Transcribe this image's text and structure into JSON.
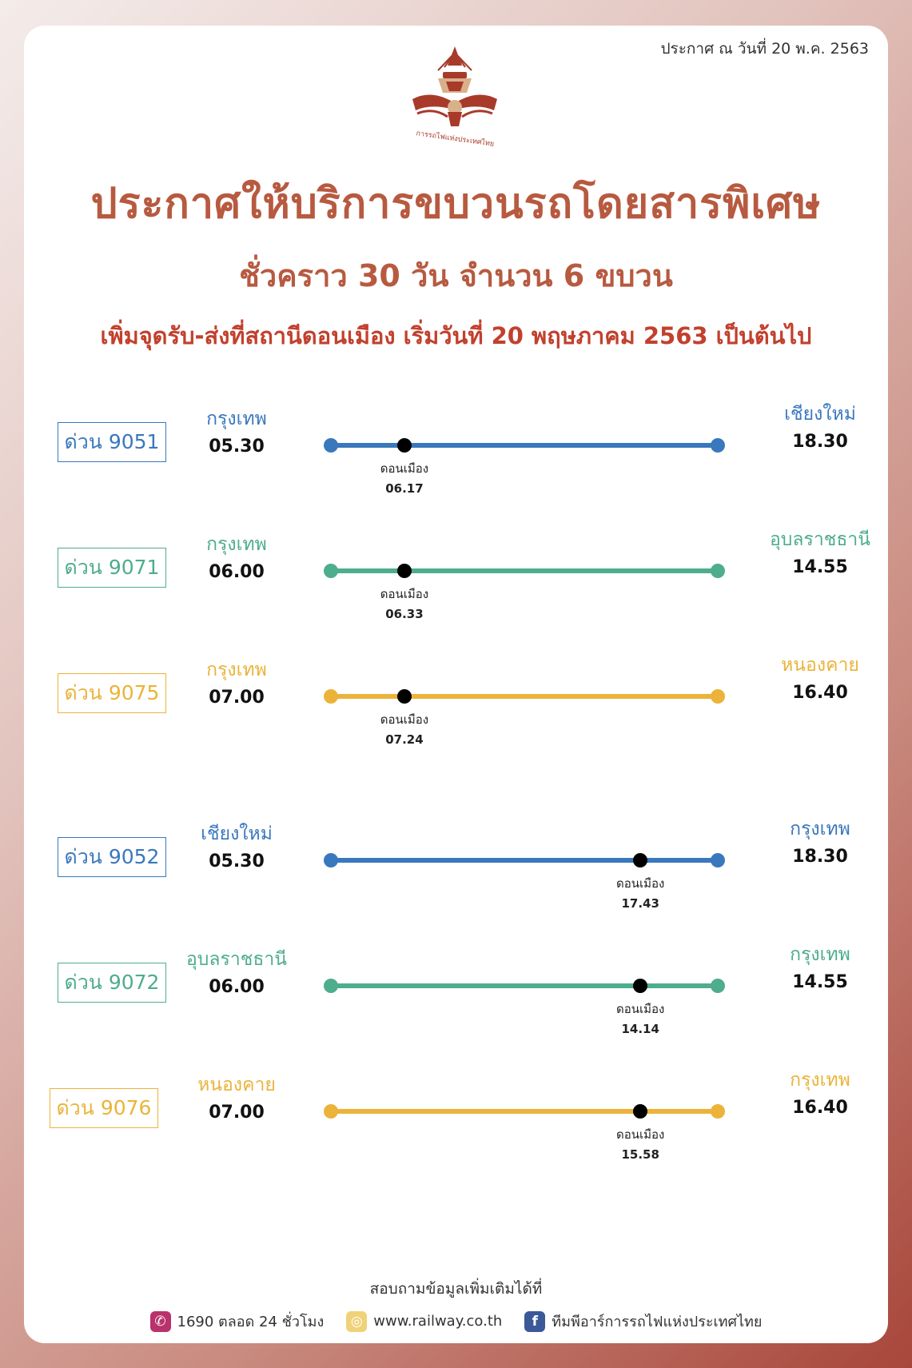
{
  "header": {
    "announce_date": "ประกาศ ณ วันที่ 20 พ.ค. 2563",
    "logo_text": "การรถไฟแห่งประเทศไทย",
    "title": "ประกาศให้บริการขบวนรถโดยสารพิเศษ",
    "subtitle": "ชั่วคราว 30 วัน จำนวน 6 ขบวน",
    "note": "เพิ่มจุดรับ-ส่งที่สถานีดอนเมือง เริ่มวันที่ 20 พฤษภาคม 2563 เป็นต้นไป"
  },
  "colors": {
    "blue": "#3a78bd",
    "green": "#4ead8c",
    "yellow": "#ebb33a",
    "title": "#b75a40",
    "note": "#c2402d"
  },
  "trains": [
    {
      "badge": "ด่วน 9051",
      "color": "blue",
      "origin": "กรุงเทพ",
      "depart": "05.30",
      "dest": "เชียงใหม่",
      "arrive": "18.30",
      "stop": "ดอนเมือง",
      "stop_time": "06.17",
      "stop_pos": 0.19
    },
    {
      "badge": "ด่วน 9071",
      "color": "green",
      "origin": "กรุงเทพ",
      "depart": "06.00",
      "dest": "อุบลราชธานี",
      "arrive": "14.55",
      "stop": "ดอนเมือง",
      "stop_time": "06.33",
      "stop_pos": 0.19
    },
    {
      "badge": "ด่วน 9075",
      "color": "yellow",
      "origin": "กรุงเทพ",
      "depart": "07.00",
      "dest": "หนองคาย",
      "arrive": "16.40",
      "stop": "ดอนเมือง",
      "stop_time": "07.24",
      "stop_pos": 0.19
    },
    {
      "badge": "ด่วน 9052",
      "color": "blue",
      "origin": "เชียงใหม่",
      "depart": "05.30",
      "dest": "กรุงเทพ",
      "arrive": "18.30",
      "stop": "ดอนเมือง",
      "stop_time": "17.43",
      "stop_pos": 0.8
    },
    {
      "badge": "ด่วน 9072",
      "color": "green",
      "origin": "อุบลราชธานี",
      "depart": "06.00",
      "dest": "กรุงเทพ",
      "arrive": "14.55",
      "stop": "ดอนเมือง",
      "stop_time": "14.14",
      "stop_pos": 0.8
    },
    {
      "badge": "ด่วน 9076",
      "color": "yellow",
      "origin": "หนองคาย",
      "depart": "07.00",
      "dest": "กรุงเทพ",
      "arrive": "16.40",
      "stop": "ดอนเมือง",
      "stop_time": "15.58",
      "stop_pos": 0.8
    }
  ],
  "footer": {
    "question": "สอบถามข้อมูลเพิ่มเติมได้ที่",
    "phone_icon": "phone-icon",
    "phone": "1690 ตลอด 24 ชั่วโมง",
    "web_icon": "globe-icon",
    "website": "www.railway.co.th",
    "fb_icon": "facebook-icon",
    "facebook": "ทีมพีอาร์การรถไฟแห่งประเทศไทย"
  }
}
